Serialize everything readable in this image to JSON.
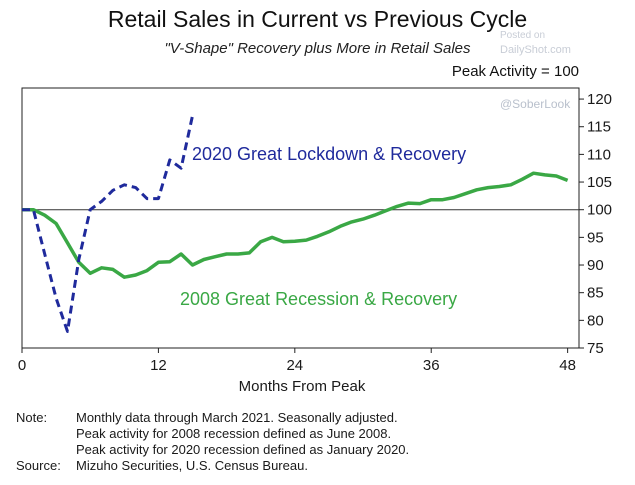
{
  "header": {
    "title": "Retail Sales in Current vs Previous Cycle",
    "subtitle": "\"V-Shape\" Recovery plus More in Retail Sales",
    "peak_note": "Peak Activity = 100"
  },
  "watermark": {
    "line1": "Posted on",
    "line2": "DailyShot.com",
    "line3": "@SoberLook"
  },
  "chart_data": {
    "type": "line",
    "title": "Retail Sales in Current vs Previous Cycle",
    "subtitle": "\"V-Shape\" Recovery plus More in Retail Sales",
    "xlabel": "Months From Peak",
    "ylabel": "Peak Activity = 100",
    "xlim": [
      0,
      49
    ],
    "ylim": [
      75,
      122
    ],
    "xticks": [
      0,
      12,
      24,
      36,
      48
    ],
    "yticks": [
      75,
      80,
      85,
      90,
      95,
      100,
      105,
      110,
      115,
      120
    ],
    "reference_line": 100,
    "colors": {
      "lockdown": "#1f2a9c",
      "recession": "#3aa845",
      "reference": "#333333"
    },
    "series": [
      {
        "name": "2020 Great Lockdown & Recovery",
        "style": "dashed",
        "color": "#1f2a9c",
        "x": [
          0,
          1,
          2,
          3,
          4,
          5,
          6,
          7,
          8,
          9,
          10,
          11,
          12,
          13,
          14,
          15
        ],
        "y": [
          100,
          100,
          92,
          84,
          78,
          91,
          100,
          101.5,
          103.5,
          104.5,
          104,
          102,
          102,
          109,
          107.5,
          117
        ]
      },
      {
        "name": "2008 Great Recession & Recovery",
        "style": "solid",
        "color": "#3aa845",
        "x": [
          0,
          1,
          2,
          3,
          4,
          5,
          6,
          7,
          8,
          9,
          10,
          11,
          12,
          13,
          14,
          15,
          16,
          17,
          18,
          19,
          20,
          21,
          22,
          23,
          24,
          25,
          26,
          27,
          28,
          29,
          30,
          31,
          32,
          33,
          34,
          35,
          36,
          37,
          38,
          39,
          40,
          41,
          42,
          43,
          44,
          45,
          46,
          47,
          48
        ],
        "y": [
          100,
          100,
          99,
          97.5,
          94,
          90.5,
          88.5,
          89.5,
          89.2,
          87.8,
          88.2,
          89,
          90.5,
          90.6,
          92,
          90,
          91,
          91.5,
          92,
          92,
          92.2,
          94.2,
          95,
          94.2,
          94.3,
          94.5,
          95.2,
          96,
          97,
          97.8,
          98.3,
          99,
          99.8,
          100.6,
          101.2,
          101.1,
          101.8,
          101.8,
          102.2,
          102.9,
          103.6,
          104,
          104.2,
          104.5,
          105.5,
          106.6,
          106.3,
          106.1,
          105.3
        ]
      }
    ],
    "annotations": [
      {
        "text": "2020 Great Lockdown & Recovery",
        "series": "2020 Great Lockdown & Recovery"
      },
      {
        "text": "2008 Great Recession & Recovery",
        "series": "2008 Great Recession & Recovery"
      }
    ]
  },
  "footer": {
    "note_label": "Note:",
    "note_lines": [
      "Monthly data through March 2021. Seasonally adjusted.",
      "Peak activity for 2008 recession defined as June 2008.",
      "Peak activity for 2020 recession defined as January 2020."
    ],
    "source_label": "Source:",
    "source_text": "Mizuho Securities, U.S. Census Bureau."
  }
}
